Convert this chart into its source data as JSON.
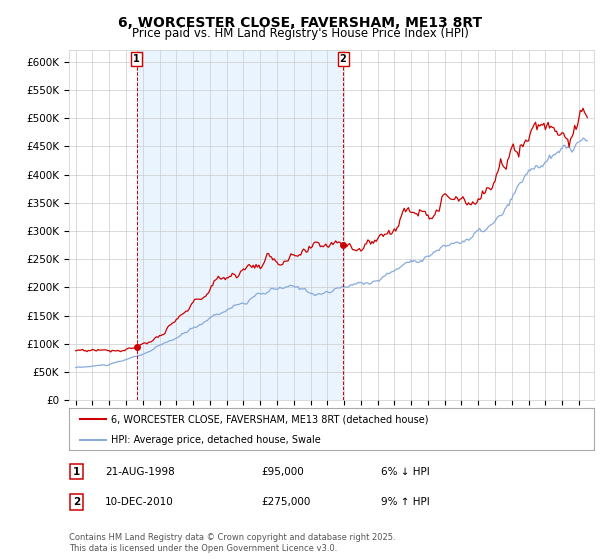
{
  "title": "6, WORCESTER CLOSE, FAVERSHAM, ME13 8RT",
  "subtitle": "Price paid vs. HM Land Registry's House Price Index (HPI)",
  "ylim": [
    0,
    620000
  ],
  "yticks": [
    0,
    50000,
    100000,
    150000,
    200000,
    250000,
    300000,
    350000,
    400000,
    450000,
    500000,
    550000,
    600000
  ],
  "ytick_labels": [
    "£0",
    "£50K",
    "£100K",
    "£150K",
    "£200K",
    "£250K",
    "£300K",
    "£350K",
    "£400K",
    "£450K",
    "£500K",
    "£550K",
    "£600K"
  ],
  "legend_label_red": "6, WORCESTER CLOSE, FAVERSHAM, ME13 8RT (detached house)",
  "legend_label_blue": "HPI: Average price, detached house, Swale",
  "annotation1_label": "1",
  "annotation1_date": "21-AUG-1998",
  "annotation1_price": "£95,000",
  "annotation1_pct": "6% ↓ HPI",
  "annotation1_year": 1998.63,
  "annotation2_label": "2",
  "annotation2_date": "10-DEC-2010",
  "annotation2_price": "£275,000",
  "annotation2_pct": "9% ↑ HPI",
  "annotation2_year": 2010.94,
  "red_color": "#cc0000",
  "blue_color": "#88aadd",
  "fill_color": "#ddeeff",
  "background_color": "#ffffff",
  "grid_color": "#cccccc",
  "footer_text": "Contains HM Land Registry data © Crown copyright and database right 2025.\nThis data is licensed under the Open Government Licence v3.0.",
  "title_fontsize": 10,
  "subtitle_fontsize": 8.5
}
